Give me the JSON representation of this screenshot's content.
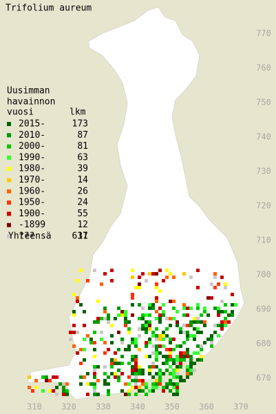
{
  "title": "Trifolium aureum",
  "legend": {
    "heading": [
      "Uusimman",
      "havainnon",
      "vuosi"
    ],
    "count_heading": "lkm",
    "items": [
      {
        "label": "2015-",
        "count": 173,
        "color": "#006400"
      },
      {
        "label": "2010-",
        "count": 87,
        "color": "#009600"
      },
      {
        "label": "2000-",
        "count": 81,
        "color": "#00c800"
      },
      {
        "label": "1990-",
        "count": 63,
        "color": "#32ff32"
      },
      {
        "label": "1980-",
        "count": 39,
        "color": "#ffff00"
      },
      {
        "label": "1970-",
        "count": 14,
        "color": "#ffc800"
      },
      {
        "label": "1960-",
        "count": 26,
        "color": "#ff6400"
      },
      {
        "label": "1950-",
        "count": 24,
        "color": "#ff3200"
      },
      {
        "label": "1900-",
        "count": 55,
        "color": "#c80000"
      },
      {
        "label": "-1899",
        "count": 12,
        "color": "#800000"
      },
      {
        "label": "???",
        "count": 37,
        "color": "#c8c8c8"
      }
    ],
    "total_label": "Yhteensä",
    "total": 611
  },
  "x_labels": [
    310,
    320,
    330,
    340,
    350,
    360,
    370
  ],
  "y_labels": [
    670,
    680,
    690,
    700,
    710,
    720,
    730,
    740,
    750,
    760,
    770
  ]
}
